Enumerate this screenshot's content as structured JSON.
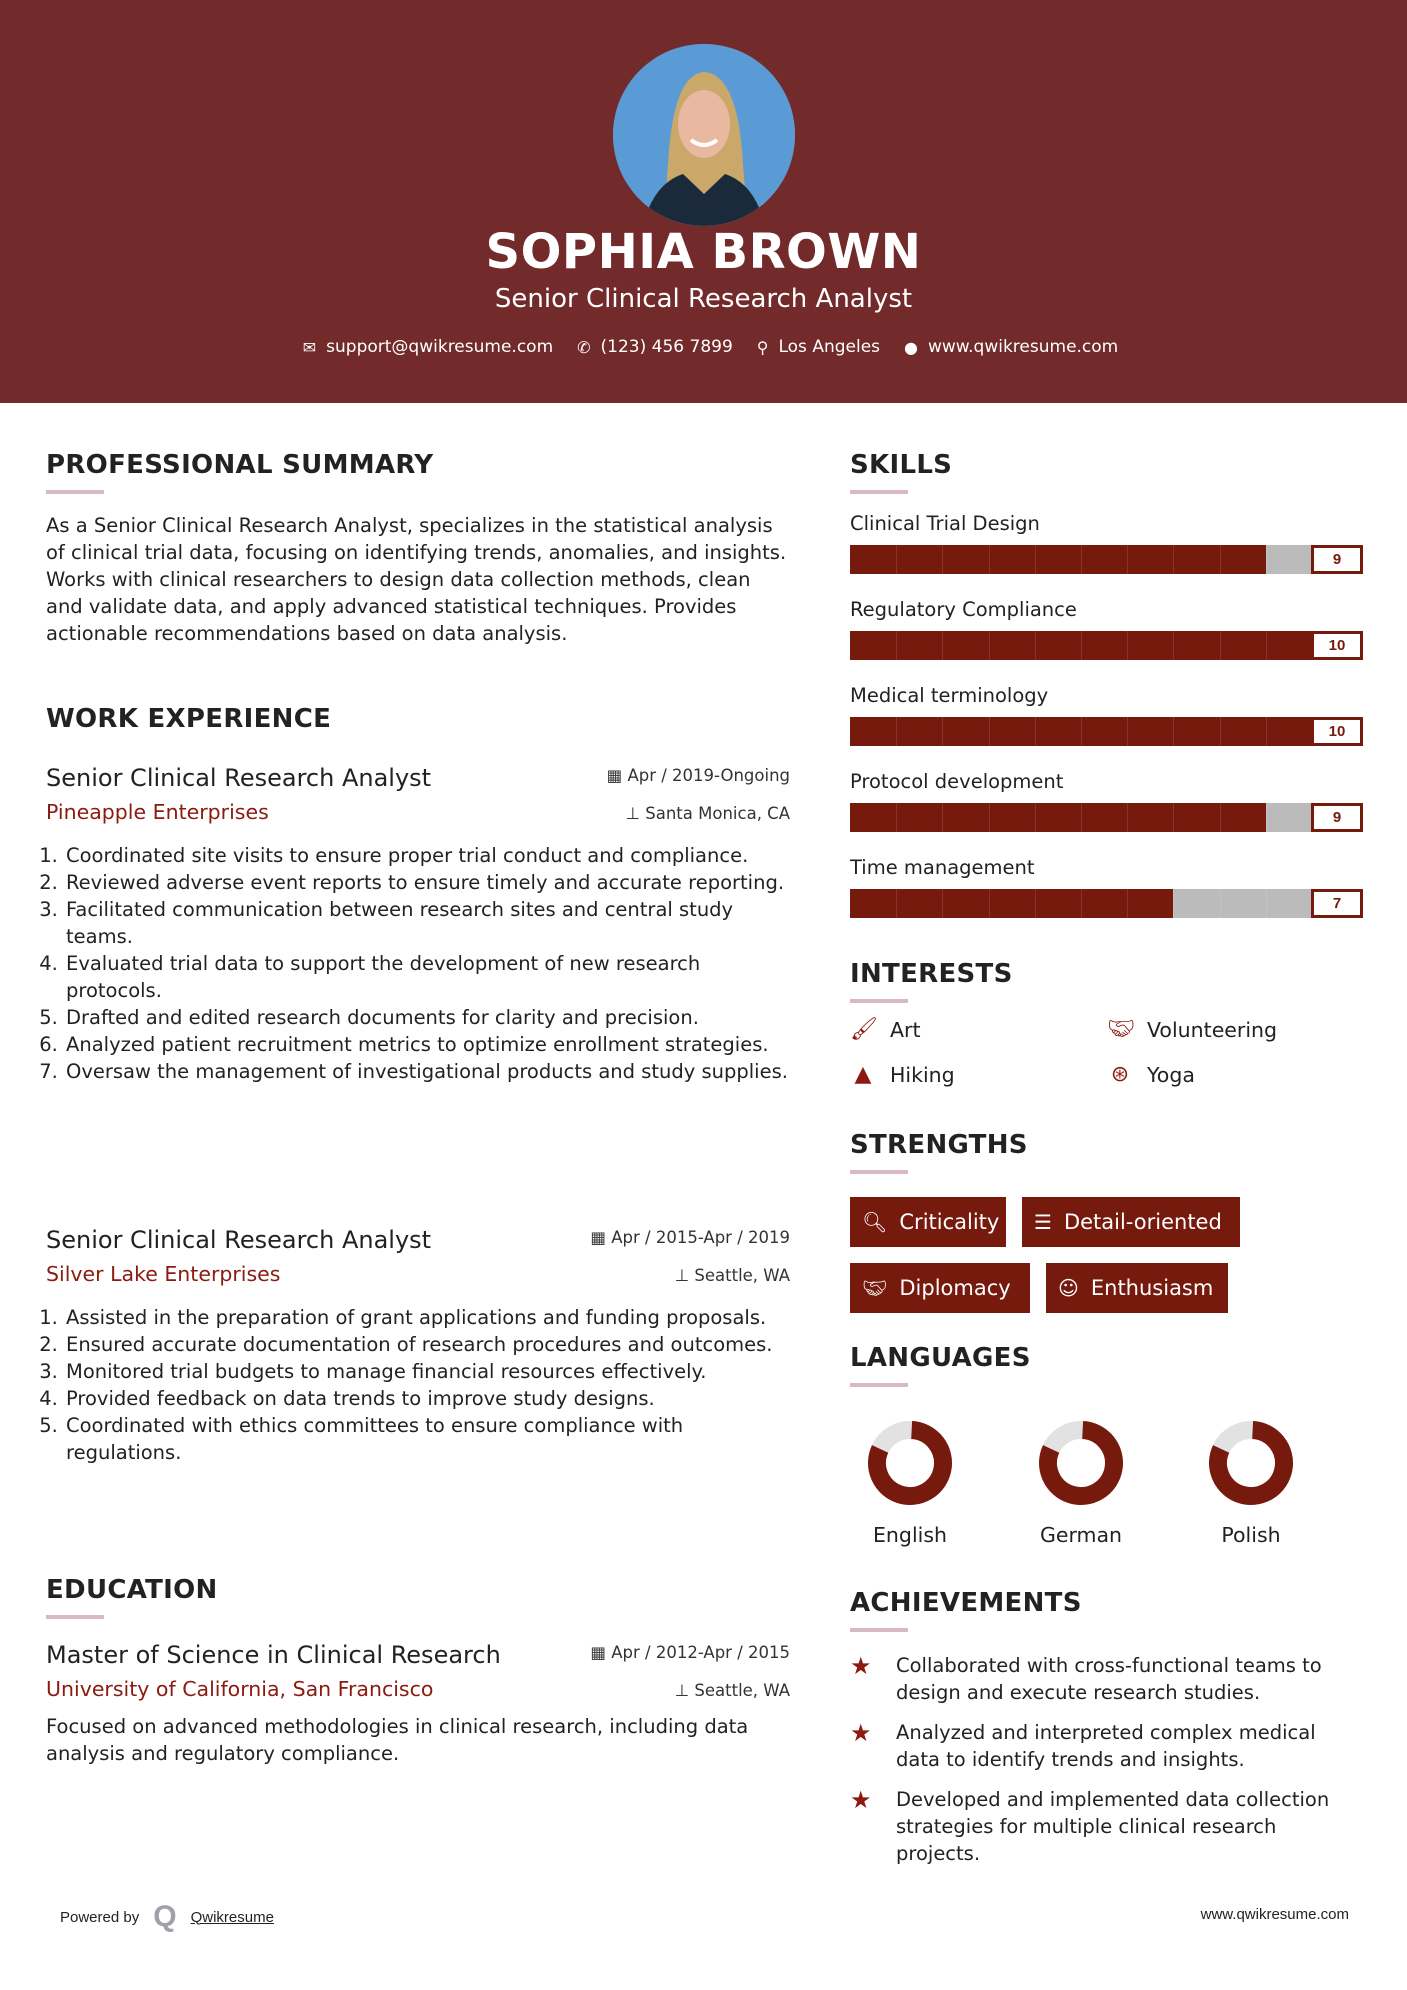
{
  "colors": {
    "header_bg": "#722a2a",
    "accent": "#761a0e",
    "accent_text": "#8b1a10",
    "underline": "#d8b9c2",
    "bar_empty": "#bbbbbb"
  },
  "header": {
    "name": "SOPHIA BROWN",
    "title": "Senior Clinical Research Analyst",
    "contact": [
      {
        "icon": "envelope-icon",
        "text": "support@qwikresume.com"
      },
      {
        "icon": "phone-icon",
        "text": "(123) 456 7899"
      },
      {
        "icon": "map-pin-icon",
        "text": "Los Angeles"
      },
      {
        "icon": "globe-icon",
        "text": "www.qwikresume.com"
      }
    ]
  },
  "summary": {
    "heading": "PROFESSIONAL SUMMARY",
    "text": "As a Senior Clinical Research Analyst, specializes in the statistical analysis of clinical trial data, focusing on identifying trends, anomalies, and insights. Works with clinical researchers to design data collection methods, clean and validate data, and apply advanced statistical techniques. Provides actionable recommendations based on data analysis."
  },
  "experience": {
    "heading": "WORK EXPERIENCE",
    "jobs": [
      {
        "title": "Senior Clinical Research Analyst",
        "company": "Pineapple Enterprises",
        "date": "Apr / 2019-Ongoing",
        "location": "Santa Monica, CA",
        "bullets": [
          "Coordinated site visits to ensure proper trial conduct and compliance.",
          "Reviewed adverse event reports to ensure timely and accurate reporting.",
          "Facilitated communication between research sites and central study teams.",
          "Evaluated trial data to support the development of new research protocols.",
          "Drafted and edited research documents for clarity and precision.",
          "Analyzed patient recruitment metrics to optimize enrollment strategies.",
          "Oversaw the management of investigational products and study supplies."
        ]
      },
      {
        "title": "Senior Clinical Research Analyst",
        "company": "Silver Lake Enterprises",
        "date": "Apr / 2015-Apr / 2019",
        "location": "Seattle, WA",
        "bullets": [
          "Assisted in the preparation of grant applications and funding proposals.",
          "Ensured accurate documentation of research procedures and outcomes.",
          "Monitored trial budgets to manage financial resources effectively.",
          "Provided feedback on data trends to improve study designs.",
          "Coordinated with ethics committees to ensure compliance with regulations."
        ]
      }
    ]
  },
  "education": {
    "heading": "EDUCATION",
    "degree": "Master of Science in Clinical Research",
    "school": "University of California, San Francisco",
    "date": "Apr / 2012-Apr / 2015",
    "location": "Seattle, WA",
    "text": "Focused on advanced methodologies in clinical research, including data analysis and regulatory compliance."
  },
  "skills": {
    "heading": "SKILLS",
    "max": 10,
    "items": [
      {
        "name": "Clinical Trial Design",
        "value": 9
      },
      {
        "name": "Regulatory Compliance",
        "value": 10
      },
      {
        "name": "Medical terminology",
        "value": 10
      },
      {
        "name": "Protocol development",
        "value": 9
      },
      {
        "name": "Time management",
        "value": 7
      }
    ]
  },
  "interests": {
    "heading": "INTERESTS",
    "items": [
      {
        "icon": "paintbrush-icon",
        "label": "Art"
      },
      {
        "icon": "handshake-icon",
        "label": "Volunteering"
      },
      {
        "icon": "tree-icon",
        "label": "Hiking"
      },
      {
        "icon": "lifebuoy-icon",
        "label": "Yoga"
      }
    ]
  },
  "strengths": {
    "heading": "STRENGTHS",
    "items": [
      {
        "icon": "search-icon",
        "label": "Criticality"
      },
      {
        "icon": "list-icon",
        "label": "Detail-oriented"
      },
      {
        "icon": "handshake-icon",
        "label": "Diplomacy"
      },
      {
        "icon": "smile-icon",
        "label": "Enthusiasm"
      }
    ]
  },
  "languages": {
    "heading": "LANGUAGES",
    "items": [
      {
        "label": "English",
        "level": 0.82
      },
      {
        "label": "German",
        "level": 0.82
      },
      {
        "label": "Polish",
        "level": 0.82
      }
    ]
  },
  "achievements": {
    "heading": "ACHIEVEMENTS",
    "items": [
      "Collaborated with cross-functional teams to design and execute research studies.",
      "Analyzed and interpreted complex medical data to identify trends and insights.",
      "Developed and implemented data collection strategies for multiple clinical research projects."
    ]
  },
  "footer": {
    "powered_by": "Powered by",
    "brand": "Qwikresume",
    "website": "www.qwikresume.com"
  }
}
